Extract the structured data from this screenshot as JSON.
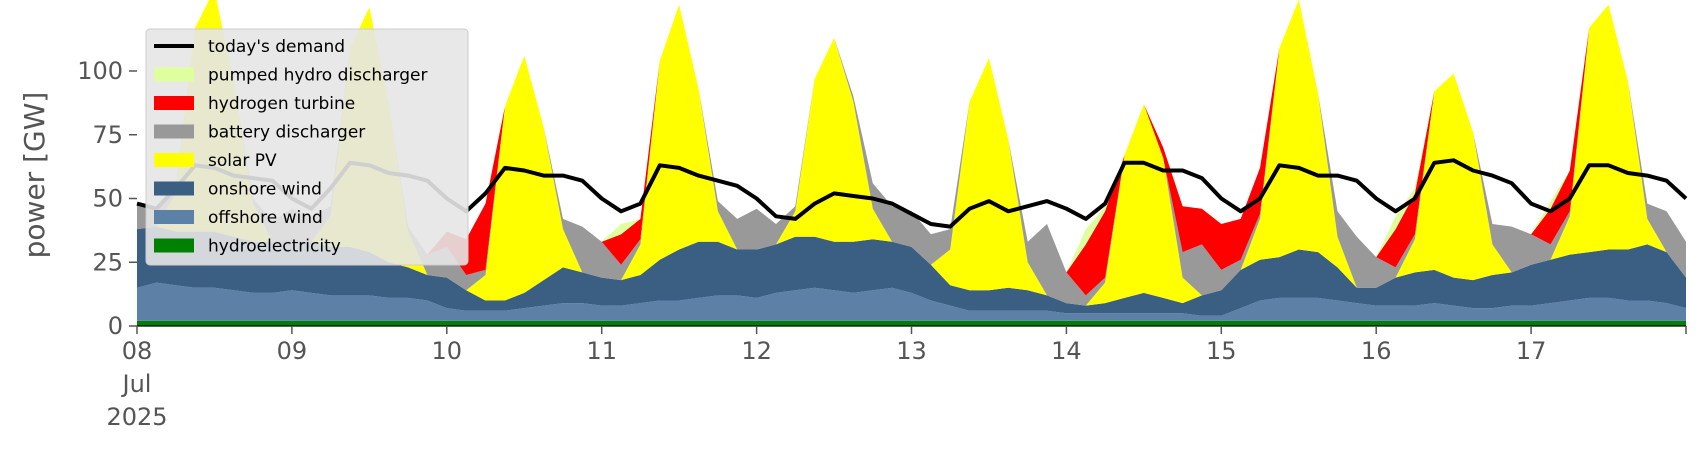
{
  "chart_data": {
    "type": "area",
    "title": "",
    "xlabel": "",
    "ylabel": "power [GW]",
    "ylim": [
      0,
      120
    ],
    "xlim": [
      0,
      240
    ],
    "x_unit": "hours since 08 Jul 2025 00:00",
    "yticks": [
      0,
      25,
      50,
      75,
      100
    ],
    "x_tick_labels": [
      {
        "hour": 0,
        "label": "08",
        "sub": [
          "Jul",
          "2025"
        ]
      },
      {
        "hour": 24,
        "label": "09"
      },
      {
        "hour": 48,
        "label": "10"
      },
      {
        "hour": 72,
        "label": "11"
      },
      {
        "hour": 96,
        "label": "12"
      },
      {
        "hour": 120,
        "label": "13"
      },
      {
        "hour": 144,
        "label": "14"
      },
      {
        "hour": 168,
        "label": "15"
      },
      {
        "hour": 192,
        "label": "16"
      },
      {
        "hour": 216,
        "label": "17"
      }
    ],
    "grid": false,
    "legend_position": "top-left",
    "x": [
      0,
      3,
      6,
      9,
      12,
      15,
      18,
      21,
      24,
      27,
      30,
      33,
      36,
      39,
      42,
      45,
      48,
      51,
      54,
      57,
      60,
      63,
      66,
      69,
      72,
      75,
      78,
      81,
      84,
      87,
      90,
      93,
      96,
      99,
      102,
      105,
      108,
      111,
      114,
      117,
      120,
      123,
      126,
      129,
      132,
      135,
      138,
      141,
      144,
      147,
      150,
      153,
      156,
      159,
      162,
      165,
      168,
      171,
      174,
      177,
      180,
      183,
      186,
      189,
      192,
      195,
      198,
      201,
      204,
      207,
      210,
      213,
      216,
      219,
      222,
      225,
      228,
      231,
      234,
      237,
      240
    ],
    "demand": {
      "name": "today's demand",
      "color": "#000000",
      "values": [
        48,
        46,
        54,
        63,
        62,
        59,
        58,
        57,
        50,
        46,
        54,
        64,
        63,
        60,
        59,
        57,
        50,
        45,
        52,
        62,
        61,
        59,
        59,
        57,
        50,
        45,
        48,
        63,
        62,
        59,
        57,
        55,
        50,
        43,
        42,
        48,
        52,
        51,
        50,
        48,
        44,
        40,
        39,
        46,
        49,
        45,
        47,
        49,
        46,
        42,
        48,
        64,
        64,
        61,
        61,
        58,
        50,
        45,
        50,
        63,
        62,
        59,
        59,
        57,
        50,
        45,
        50,
        64,
        65,
        61,
        59,
        56,
        48,
        45,
        50,
        63,
        63,
        60,
        59,
        57,
        50
      ]
    },
    "series": [
      {
        "name": "hydroelectricity",
        "color": "#008000",
        "values": [
          2,
          2,
          2,
          2,
          2,
          2,
          2,
          2,
          2,
          2,
          2,
          2,
          2,
          2,
          2,
          2,
          2,
          2,
          2,
          2,
          2,
          2,
          2,
          2,
          2,
          2,
          2,
          2,
          2,
          2,
          2,
          2,
          2,
          2,
          2,
          2,
          2,
          2,
          2,
          2,
          2,
          2,
          2,
          2,
          2,
          2,
          2,
          2,
          2,
          2,
          2,
          2,
          2,
          2,
          2,
          2,
          2,
          2,
          2,
          2,
          2,
          2,
          2,
          2,
          2,
          2,
          2,
          2,
          2,
          2,
          2,
          2,
          2,
          2,
          2,
          2,
          2,
          2,
          2,
          2,
          2
        ]
      },
      {
        "name": "offshore wind",
        "color": "#5c80a6",
        "values": [
          13,
          15,
          14,
          13,
          13,
          12,
          11,
          11,
          12,
          11,
          10,
          10,
          10,
          9,
          9,
          8,
          5,
          4,
          4,
          4,
          5,
          6,
          7,
          7,
          6,
          6,
          7,
          8,
          8,
          9,
          10,
          10,
          9,
          11,
          12,
          13,
          12,
          11,
          12,
          13,
          11,
          8,
          6,
          4,
          4,
          4,
          4,
          4,
          3,
          3,
          3,
          3,
          3,
          3,
          3,
          2,
          2,
          5,
          8,
          9,
          9,
          9,
          8,
          7,
          6,
          6,
          6,
          7,
          6,
          5,
          5,
          6,
          6,
          7,
          8,
          9,
          9,
          8,
          8,
          7,
          5
        ]
      },
      {
        "name": "onshore wind",
        "color": "#3b5f83",
        "values": [
          23,
          22,
          21,
          22,
          22,
          21,
          20,
          20,
          20,
          20,
          19,
          19,
          17,
          14,
          12,
          10,
          12,
          8,
          4,
          4,
          6,
          10,
          14,
          12,
          11,
          10,
          11,
          16,
          20,
          22,
          21,
          18,
          19,
          19,
          21,
          20,
          19,
          20,
          20,
          18,
          18,
          14,
          8,
          8,
          8,
          9,
          8,
          6,
          4,
          3,
          4,
          6,
          8,
          6,
          4,
          8,
          10,
          15,
          16,
          16,
          19,
          18,
          13,
          6,
          7,
          11,
          13,
          13,
          11,
          11,
          13,
          13,
          16,
          17,
          18,
          18,
          19,
          20,
          22,
          20,
          12
        ]
      },
      {
        "name": "solar PV",
        "color": "#ffff00",
        "values": [
          0,
          0,
          15,
          80,
          95,
          60,
          15,
          0,
          0,
          0,
          12,
          78,
          96,
          62,
          14,
          0,
          0,
          0,
          10,
          76,
          93,
          60,
          15,
          0,
          0,
          0,
          12,
          78,
          96,
          60,
          12,
          0,
          0,
          0,
          10,
          62,
          80,
          55,
          12,
          0,
          0,
          0,
          14,
          74,
          91,
          58,
          11,
          0,
          0,
          0,
          8,
          56,
          74,
          55,
          10,
          0,
          0,
          0,
          16,
          82,
          98,
          62,
          12,
          0,
          0,
          0,
          13,
          70,
          80,
          58,
          12,
          0,
          0,
          0,
          15,
          88,
          96,
          66,
          10,
          0,
          0
        ]
      },
      {
        "name": "battery discharger",
        "color": "#999999",
        "values": [
          10,
          6,
          2,
          0,
          0,
          0,
          2,
          8,
          12,
          10,
          4,
          0,
          0,
          0,
          2,
          8,
          12,
          6,
          2,
          0,
          0,
          0,
          4,
          18,
          14,
          6,
          2,
          0,
          0,
          0,
          4,
          12,
          16,
          8,
          2,
          0,
          0,
          2,
          10,
          14,
          14,
          12,
          8,
          0,
          0,
          0,
          8,
          28,
          12,
          4,
          2,
          0,
          0,
          0,
          10,
          20,
          8,
          4,
          2,
          0,
          0,
          0,
          10,
          20,
          12,
          4,
          2,
          0,
          0,
          0,
          8,
          18,
          12,
          6,
          2,
          0,
          0,
          0,
          6,
          16,
          14
        ]
      },
      {
        "name": "hydrogen turbine",
        "color": "#ff0000",
        "values": [
          0,
          0,
          0,
          0,
          0,
          0,
          0,
          0,
          0,
          0,
          0,
          0,
          0,
          0,
          0,
          0,
          6,
          14,
          26,
          0,
          0,
          0,
          0,
          0,
          0,
          12,
          8,
          0,
          0,
          0,
          0,
          0,
          0,
          0,
          0,
          0,
          0,
          0,
          0,
          0,
          0,
          0,
          0,
          0,
          0,
          0,
          0,
          0,
          0,
          20,
          26,
          0,
          0,
          4,
          18,
          14,
          18,
          16,
          18,
          0,
          0,
          0,
          0,
          0,
          0,
          15,
          16,
          0,
          0,
          0,
          0,
          0,
          0,
          14,
          16,
          0,
          0,
          0,
          0,
          0,
          0
        ]
      },
      {
        "name": "pumped hydro discharger",
        "color": "#dfff9e",
        "values": [
          0,
          0,
          0,
          0,
          0,
          0,
          0,
          0,
          0,
          0,
          0,
          0,
          0,
          0,
          0,
          0,
          0,
          0,
          0,
          0,
          0,
          0,
          0,
          0,
          0,
          4,
          0,
          0,
          0,
          0,
          0,
          0,
          0,
          0,
          0,
          0,
          0,
          0,
          0,
          0,
          0,
          0,
          0,
          0,
          0,
          0,
          0,
          0,
          0,
          6,
          2,
          0,
          0,
          0,
          0,
          0,
          0,
          0,
          0,
          0,
          0,
          0,
          0,
          0,
          0,
          5,
          2,
          0,
          0,
          0,
          0,
          0,
          0,
          3,
          0,
          0,
          0,
          0,
          0,
          0,
          0
        ]
      }
    ],
    "legend_order": [
      "today's demand",
      "pumped hydro discharger",
      "hydrogen turbine",
      "battery discharger",
      "solar PV",
      "onshore wind",
      "offshore wind",
      "hydroelectricity"
    ]
  }
}
